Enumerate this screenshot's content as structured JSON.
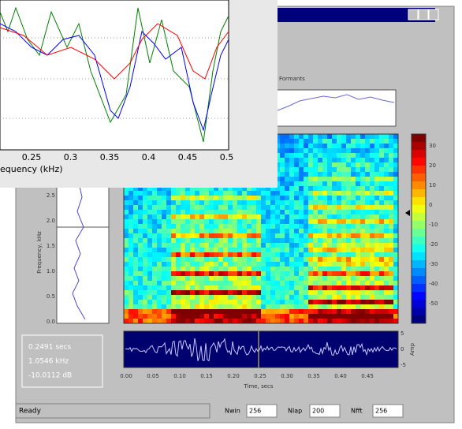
{
  "front_plot": {
    "xticks": [
      "0.25",
      "0.3",
      "0.35",
      "0.4",
      "0.45",
      "0.5"
    ],
    "xlabel": "equency (kHz)"
  },
  "window": {
    "formant_label": "Formants",
    "colorbar_ticks": [
      "30",
      "20",
      "10",
      "0",
      "-10",
      "-20",
      "-30",
      "-40",
      "-50"
    ],
    "freq_label": "Frequency, kHz",
    "freq_ticks": [
      "2.5",
      "2.0",
      "1.5",
      "1.0",
      "0.5",
      "0.0"
    ],
    "time_ticks": [
      "0.00",
      "0.05",
      "0.10",
      "0.15",
      "0.20",
      "0.25",
      "0.30",
      "0.35",
      "0.40",
      "0.45"
    ],
    "time_label": "Time, secs",
    "amp_label": "Amp",
    "amp_ticks": [
      "5",
      "0",
      "-5"
    ],
    "readout": [
      "0.2491 secs",
      "1.0546 kHz",
      "-10.0112 dB"
    ],
    "status": "Ready",
    "fields": [
      {
        "label": "Nwin",
        "value": "256"
      },
      {
        "label": "Nlap",
        "value": "200"
      },
      {
        "label": "Nfft",
        "value": "256"
      }
    ]
  }
}
